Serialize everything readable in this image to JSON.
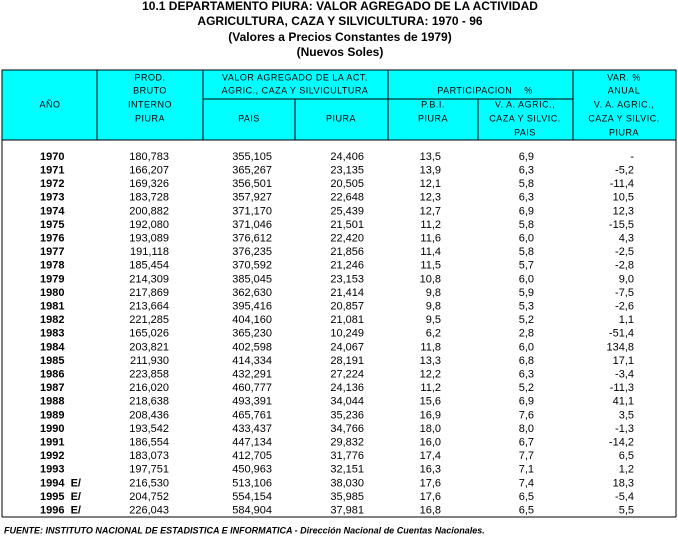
{
  "header": {
    "title": [
      "10.1  DEPARTAMENTO  PIURA: VALOR AGREGADO DE LA ACTIVIDAD",
      "AGRICULTURA, CAZA Y SILVICULTURA: 1970 - 96",
      "(Valores a Precios Constantes de 1979)",
      "(Nuevos Soles)"
    ]
  },
  "table": {
    "columns": {
      "year": "AÑO",
      "pbi": [
        "PROD.",
        "BRUTO",
        "INTERNO",
        "PIURA"
      ],
      "va_group": [
        "VALOR AGREGADO DE LA ACT.",
        "AGRIC., CAZA Y SILVICULTURA"
      ],
      "va_pais": "PAIS",
      "va_piura": "PIURA",
      "part_group": "PARTICIPACION    %",
      "part_pbi": [
        "P.B.I.",
        "PIURA"
      ],
      "part_va": [
        "V. A. AGRIC.,",
        "CAZA Y SILVIC.",
        "PAIS"
      ],
      "var": [
        "VAR. %",
        "ANUAL",
        "V. A. AGRIC.,",
        "CAZA Y SILVIC.",
        "PIURA"
      ]
    },
    "rows": [
      [
        "1970",
        "180,783",
        "355,105",
        "24,406",
        "13,5",
        "6,9",
        "-"
      ],
      [
        "1971",
        "166,207",
        "365,267",
        "23,135",
        "13,9",
        "6,3",
        "-5,2"
      ],
      [
        "1972",
        "169,326",
        "356,501",
        "20,505",
        "12,1",
        "5,8",
        "-11,4"
      ],
      [
        "1973",
        "183,728",
        "357,927",
        "22,648",
        "12,3",
        "6,3",
        "10,5"
      ],
      [
        "1974",
        "200,882",
        "371,170",
        "25,439",
        "12,7",
        "6,9",
        "12,3"
      ],
      [
        "1975",
        "192,080",
        "371,046",
        "21,501",
        "11,2",
        "5,8",
        "-15,5"
      ],
      [
        "1976",
        "193,089",
        "376,612",
        "22,420",
        "11,6",
        "6,0",
        "4,3"
      ],
      [
        "1977",
        "191,118",
        "376,235",
        "21,856",
        "11,4",
        "5,8",
        "-2,5"
      ],
      [
        "1978",
        "185,454",
        "370,592",
        "21,246",
        "11,5",
        "5,7",
        "-2,8"
      ],
      [
        "1979",
        "214,309",
        "385,045",
        "23,153",
        "10,8",
        "6,0",
        "9,0"
      ],
      [
        "1980",
        "217,869",
        "362,630",
        "21,414",
        "9,8",
        "5,9",
        "-7,5"
      ],
      [
        "1981",
        "213,664",
        "395,416",
        "20,857",
        "9,8",
        "5,3",
        "-2,6"
      ],
      [
        "1982",
        "221,285",
        "404,160",
        "21,081",
        "9,5",
        "5,2",
        "1,1"
      ],
      [
        "1983",
        "165,026",
        "365,230",
        "10,249",
        "6,2",
        "2,8",
        "-51,4"
      ],
      [
        "1984",
        "203,821",
        "402,598",
        "24,067",
        "11,8",
        "6,0",
        "134,8"
      ],
      [
        "1985",
        "211,930",
        "414,334",
        "28,191",
        "13,3",
        "6,8",
        "17,1"
      ],
      [
        "1986",
        "223,858",
        "432,291",
        "27,224",
        "12,2",
        "6,3",
        "-3,4"
      ],
      [
        "1987",
        "216,020",
        "460,777",
        "24,136",
        "11,2",
        "5,2",
        "-11,3"
      ],
      [
        "1988",
        "218,638",
        "493,391",
        "34,044",
        "15,6",
        "6,9",
        "41,1"
      ],
      [
        "1989",
        "208,436",
        "465,761",
        "35,236",
        "16,9",
        "7,6",
        "3,5"
      ],
      [
        "1990",
        "193,542",
        "433,437",
        "34,766",
        "18,0",
        "8,0",
        "-1,3"
      ],
      [
        "1991",
        "186,554",
        "447,134",
        "29,832",
        "16,0",
        "6,7",
        "-14,2"
      ],
      [
        "1992",
        "183,073",
        "412,705",
        "31,776",
        "17,4",
        "7,7",
        "6,5"
      ],
      [
        "1993",
        "197,751",
        "450,963",
        "32,151",
        "16,3",
        "7,1",
        "1,2"
      ],
      [
        "1994  E/",
        "216,530",
        "513,106",
        "38,030",
        "17,6",
        "7,4",
        "18,3"
      ],
      [
        "1995  E/",
        "204,752",
        "554,154",
        "35,985",
        "17,6",
        "6,5",
        "-5,4"
      ],
      [
        "1996  E/",
        "226,043",
        "584,904",
        "37,981",
        "16,8",
        "6,5",
        "5,5"
      ]
    ]
  },
  "footer": {
    "source": "FUENTE: INSTITUTO NACIONAL DE ESTADISTICA E INFORMATICA - Dirección Nacional de Cuentas Nacionales."
  }
}
